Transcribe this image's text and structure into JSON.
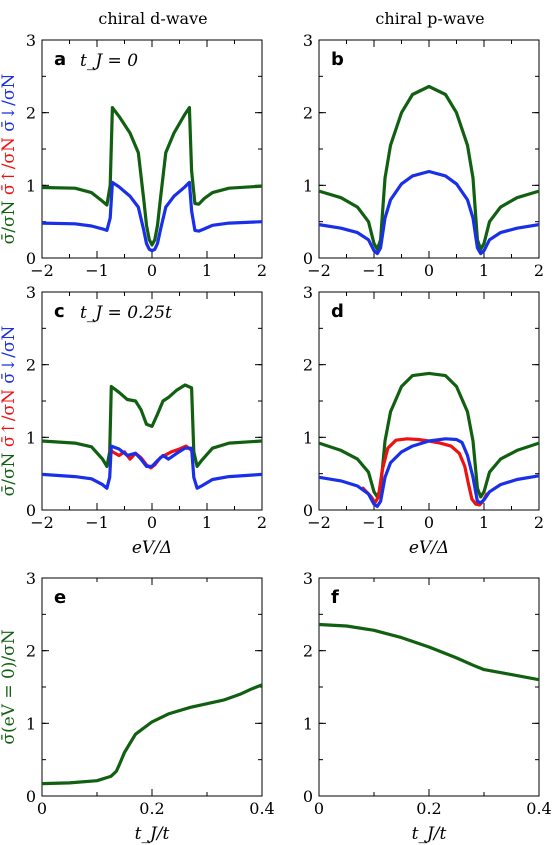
{
  "column_titles": [
    "chiral d-wave",
    "chiral p-wave"
  ],
  "colors": {
    "total": "#116011",
    "up": "#ee1111",
    "down": "#1a2fe8"
  },
  "chart_data": [
    {
      "panel": "a",
      "type": "line",
      "annotation": "t_J = 0",
      "xlim": [
        -2,
        2
      ],
      "ylim": [
        0,
        3
      ],
      "xticks": [
        "-2",
        "-1",
        "0",
        "1",
        "2"
      ],
      "yticks": [
        "0",
        "1",
        "2",
        "3"
      ],
      "ylabel_parts": [
        "σ̄/σN",
        "σ̄↑/σN",
        "σ̄↓/σN"
      ],
      "series": [
        {
          "key": "total",
          "x": [
            -2,
            -1.4,
            -1.1,
            -0.9,
            -0.82,
            -0.76,
            -0.72,
            -0.6,
            -0.4,
            -0.25,
            -0.15,
            -0.1,
            -0.05,
            0,
            0.05,
            0.1,
            0.15,
            0.25,
            0.4,
            0.6,
            0.68,
            0.72,
            0.78,
            0.85,
            0.95,
            1.1,
            1.4,
            2
          ],
          "y": [
            0.97,
            0.96,
            0.9,
            0.78,
            0.73,
            1.0,
            2.07,
            1.95,
            1.72,
            1.45,
            0.8,
            0.45,
            0.25,
            0.18,
            0.25,
            0.45,
            0.8,
            1.45,
            1.72,
            1.98,
            2.07,
            1.2,
            0.75,
            0.74,
            0.82,
            0.9,
            0.96,
            0.99
          ]
        },
        {
          "key": "down",
          "x": [
            -2,
            -1.4,
            -1.1,
            -0.9,
            -0.82,
            -0.76,
            -0.72,
            -0.6,
            -0.4,
            -0.25,
            -0.15,
            -0.1,
            -0.05,
            0,
            0.05,
            0.1,
            0.15,
            0.25,
            0.4,
            0.6,
            0.68,
            0.72,
            0.78,
            0.85,
            0.95,
            1.1,
            1.4,
            2
          ],
          "y": [
            0.48,
            0.47,
            0.44,
            0.4,
            0.38,
            0.55,
            1.04,
            0.98,
            0.85,
            0.7,
            0.38,
            0.2,
            0.12,
            0.1,
            0.12,
            0.2,
            0.38,
            0.7,
            0.85,
            0.98,
            1.04,
            0.65,
            0.38,
            0.37,
            0.4,
            0.45,
            0.48,
            0.5
          ]
        }
      ]
    },
    {
      "panel": "b",
      "type": "line",
      "annotation": "",
      "xlim": [
        -2,
        2
      ],
      "ylim": [
        0,
        3
      ],
      "xticks": [
        "-2",
        "-1",
        "0",
        "1",
        "2"
      ],
      "yticks": [
        "0",
        "1",
        "2",
        "3"
      ],
      "ylabel_parts": [],
      "series": [
        {
          "key": "total",
          "x": [
            -2,
            -1.6,
            -1.3,
            -1.1,
            -1.0,
            -0.94,
            -0.88,
            -0.8,
            -0.7,
            -0.5,
            -0.3,
            0,
            0.3,
            0.5,
            0.7,
            0.8,
            0.88,
            0.94,
            1.0,
            1.1,
            1.3,
            1.6,
            2
          ],
          "y": [
            0.92,
            0.83,
            0.7,
            0.5,
            0.2,
            0.12,
            0.25,
            1.1,
            1.55,
            2.0,
            2.25,
            2.36,
            2.25,
            2.0,
            1.55,
            1.1,
            0.25,
            0.12,
            0.2,
            0.5,
            0.7,
            0.83,
            0.92
          ]
        },
        {
          "key": "down",
          "x": [
            -2,
            -1.6,
            -1.3,
            -1.1,
            -1.0,
            -0.94,
            -0.88,
            -0.8,
            -0.7,
            -0.5,
            -0.3,
            0,
            0.3,
            0.5,
            0.7,
            0.8,
            0.88,
            0.94,
            1.0,
            1.1,
            1.3,
            1.6,
            2
          ],
          "y": [
            0.46,
            0.41,
            0.35,
            0.25,
            0.1,
            0.06,
            0.14,
            0.55,
            0.8,
            1.02,
            1.13,
            1.19,
            1.13,
            1.02,
            0.8,
            0.55,
            0.14,
            0.06,
            0.1,
            0.25,
            0.35,
            0.41,
            0.46
          ]
        }
      ]
    },
    {
      "panel": "c",
      "type": "line",
      "annotation": "t_J = 0.25t",
      "xlim": [
        -2,
        2
      ],
      "ylim": [
        0,
        3
      ],
      "xticks": [
        "-2",
        "-1",
        "0",
        "1",
        "2"
      ],
      "yticks": [
        "0",
        "1",
        "2",
        "3"
      ],
      "ylabel_parts": [
        "σ̄/σN",
        "σ̄↑/σN",
        "σ̄↓/σN"
      ],
      "series": [
        {
          "key": "total",
          "x": [
            -2,
            -1.4,
            -1.1,
            -0.9,
            -0.82,
            -0.77,
            -0.74,
            -0.6,
            -0.45,
            -0.3,
            -0.2,
            -0.1,
            0,
            0.1,
            0.2,
            0.3,
            0.45,
            0.6,
            0.72,
            0.76,
            0.82,
            0.9,
            1.1,
            1.4,
            2
          ],
          "y": [
            0.95,
            0.92,
            0.87,
            0.7,
            0.6,
            0.8,
            1.7,
            1.62,
            1.52,
            1.5,
            1.38,
            1.18,
            1.15,
            1.32,
            1.5,
            1.55,
            1.65,
            1.72,
            1.68,
            0.8,
            0.6,
            0.68,
            0.85,
            0.92,
            0.95
          ]
        },
        {
          "key": "up",
          "x": [
            -0.76,
            -0.6,
            -0.5,
            -0.4,
            -0.3,
            -0.2,
            -0.1,
            -0.02,
            0.05,
            0.15,
            0.25,
            0.35,
            0.5,
            0.62,
            0.72
          ],
          "y": [
            0.82,
            0.75,
            0.8,
            0.7,
            0.78,
            0.72,
            0.62,
            0.58,
            0.62,
            0.72,
            0.76,
            0.8,
            0.84,
            0.88,
            0.82
          ]
        },
        {
          "key": "down",
          "x": [
            -2,
            -1.4,
            -1.1,
            -0.9,
            -0.82,
            -0.77,
            -0.74,
            -0.6,
            -0.45,
            -0.3,
            -0.2,
            -0.1,
            0,
            0.1,
            0.2,
            0.3,
            0.45,
            0.6,
            0.72,
            0.76,
            0.82,
            0.9,
            1.1,
            1.4,
            2
          ],
          "y": [
            0.49,
            0.46,
            0.43,
            0.35,
            0.3,
            0.45,
            0.88,
            0.84,
            0.75,
            0.78,
            0.7,
            0.6,
            0.6,
            0.68,
            0.75,
            0.7,
            0.78,
            0.85,
            0.85,
            0.45,
            0.3,
            0.33,
            0.42,
            0.46,
            0.49
          ]
        }
      ]
    },
    {
      "panel": "d",
      "type": "line",
      "annotation": "",
      "xlim": [
        -2,
        2
      ],
      "ylim": [
        0,
        3
      ],
      "xticks": [
        "-2",
        "-1",
        "0",
        "1",
        "2"
      ],
      "yticks": [
        "0",
        "1",
        "2",
        "3"
      ],
      "ylabel_parts": [],
      "series": [
        {
          "key": "total",
          "x": [
            -2,
            -1.6,
            -1.3,
            -1.1,
            -1.0,
            -0.94,
            -0.88,
            -0.8,
            -0.7,
            -0.5,
            -0.3,
            0,
            0.3,
            0.5,
            0.7,
            0.8,
            0.88,
            0.94,
            1.0,
            1.1,
            1.3,
            1.6,
            2
          ],
          "y": [
            0.92,
            0.82,
            0.7,
            0.52,
            0.25,
            0.18,
            0.3,
            0.95,
            1.35,
            1.7,
            1.85,
            1.88,
            1.85,
            1.7,
            1.35,
            0.95,
            0.3,
            0.18,
            0.25,
            0.52,
            0.7,
            0.82,
            0.92
          ]
        },
        {
          "key": "up",
          "x": [
            -1.2,
            -1.05,
            -0.98,
            -0.92,
            -0.85,
            -0.75,
            -0.6,
            -0.4,
            -0.2,
            0,
            0.2,
            0.4,
            0.55,
            0.65,
            0.72,
            0.78,
            0.85,
            0.92,
            0.98,
            1.05
          ],
          "y": [
            0.3,
            0.18,
            0.1,
            0.18,
            0.55,
            0.85,
            0.96,
            0.98,
            0.97,
            0.95,
            0.92,
            0.88,
            0.78,
            0.6,
            0.35,
            0.15,
            0.08,
            0.07,
            0.12,
            0.22
          ]
        },
        {
          "key": "down",
          "x": [
            -2,
            -1.6,
            -1.3,
            -1.1,
            -1.0,
            -0.94,
            -0.88,
            -0.8,
            -0.7,
            -0.5,
            -0.3,
            0,
            0.3,
            0.5,
            0.6,
            0.7,
            0.8,
            0.88,
            0.94,
            1.0,
            1.1,
            1.3,
            1.6,
            2
          ],
          "y": [
            0.45,
            0.4,
            0.33,
            0.22,
            0.08,
            0.05,
            0.12,
            0.45,
            0.65,
            0.8,
            0.88,
            0.95,
            0.98,
            0.97,
            0.93,
            0.75,
            0.45,
            0.12,
            0.1,
            0.14,
            0.25,
            0.35,
            0.42,
            0.47
          ]
        }
      ]
    },
    {
      "panel": "e",
      "type": "line",
      "annotation": "",
      "xlim": [
        0,
        0.4
      ],
      "ylim": [
        0,
        3
      ],
      "xticks": [
        "0",
        "0.2",
        "0.4"
      ],
      "yticks": [
        "0",
        "1",
        "2",
        "3"
      ],
      "xlabel": "t_J/t",
      "ylabel": "σ̄(eV = 0)/σN",
      "series": [
        {
          "key": "total",
          "x": [
            0,
            0.05,
            0.1,
            0.125,
            0.135,
            0.14,
            0.15,
            0.17,
            0.2,
            0.23,
            0.27,
            0.3,
            0.33,
            0.36,
            0.38,
            0.4
          ],
          "y": [
            0.17,
            0.18,
            0.21,
            0.27,
            0.34,
            0.42,
            0.6,
            0.85,
            1.02,
            1.13,
            1.22,
            1.27,
            1.32,
            1.4,
            1.47,
            1.53
          ]
        }
      ]
    },
    {
      "panel": "f",
      "type": "line",
      "annotation": "",
      "xlim": [
        0,
        0.4
      ],
      "ylim": [
        0,
        3
      ],
      "xticks": [
        "0",
        "0.2",
        "0.4"
      ],
      "yticks": [
        "0",
        "1",
        "2",
        "3"
      ],
      "xlabel": "t_J/t",
      "ylabel": "",
      "series": [
        {
          "key": "total",
          "x": [
            0,
            0.05,
            0.1,
            0.15,
            0.2,
            0.25,
            0.28,
            0.3,
            0.35,
            0.4
          ],
          "y": [
            2.36,
            2.34,
            2.28,
            2.18,
            2.05,
            1.9,
            1.8,
            1.74,
            1.67,
            1.6
          ]
        }
      ]
    }
  ],
  "middle_xlabel": "eV/Δ"
}
